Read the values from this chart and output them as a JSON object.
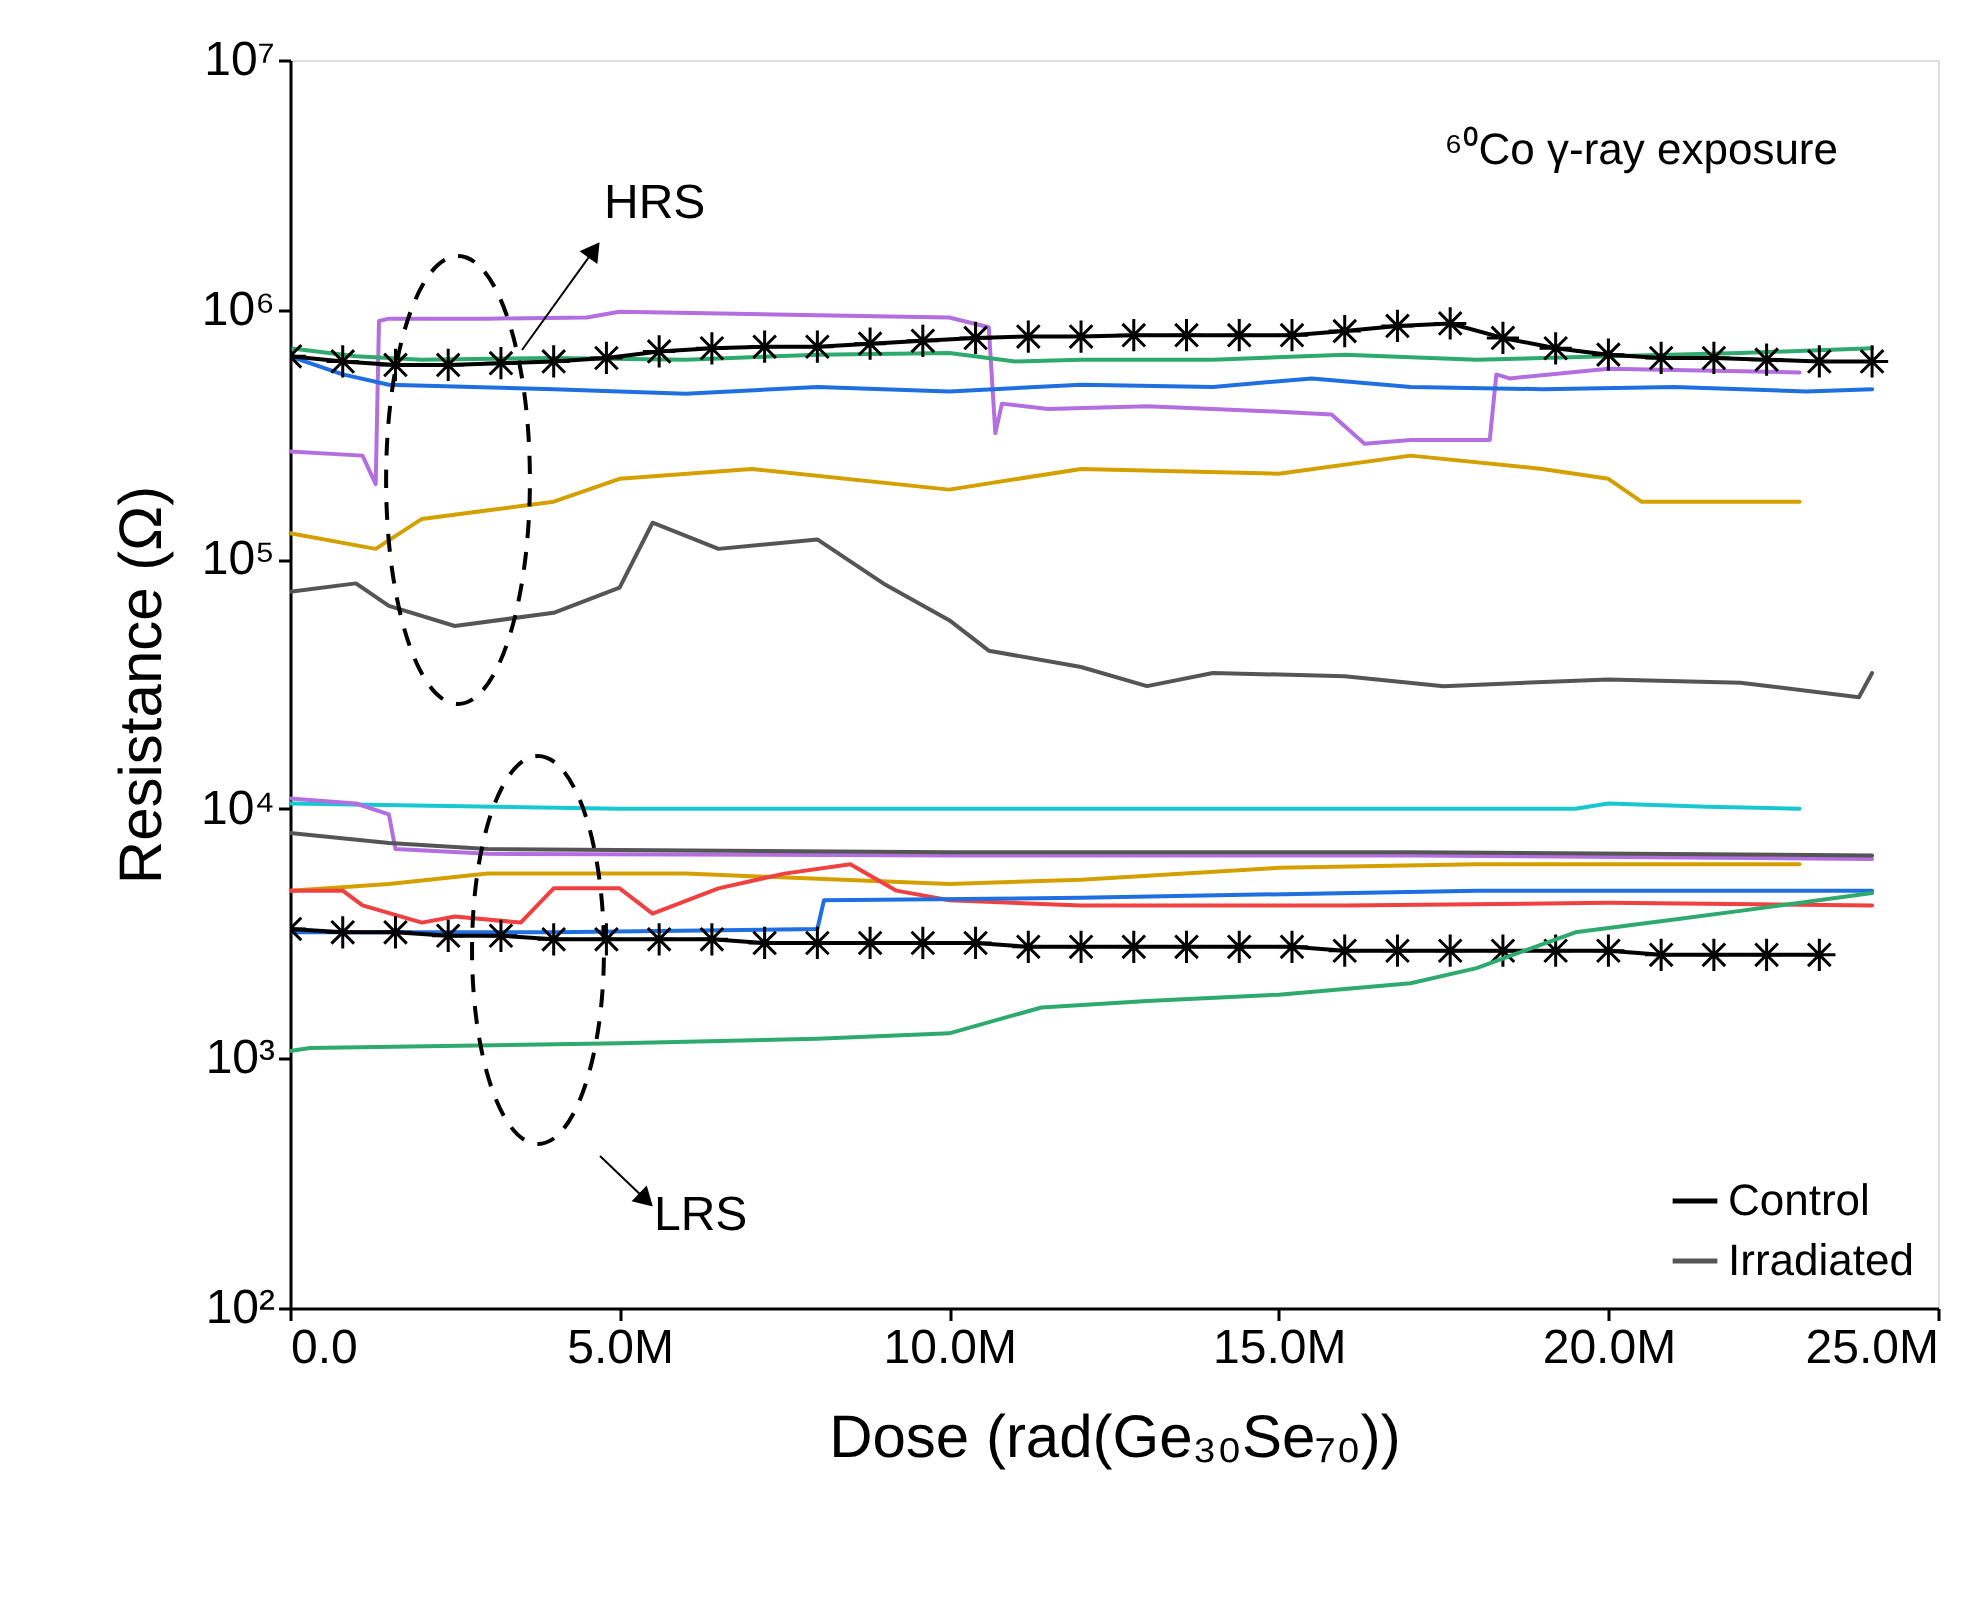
{
  "chart_data": {
    "type": "line",
    "xlabel": "Dose (rad(Ge₃₀Se₇₀))",
    "ylabel": "Resistance (Ω)",
    "annotations": [
      "⁶⁰Co γ-ray exposure",
      "HRS",
      "LRS"
    ],
    "log": "y",
    "grid": false,
    "legend": "bottom right",
    "line_style": "solid",
    "xlim": [
      0,
      25000000
    ],
    "ylim": [
      100,
      10000000
    ],
    "xticks": [
      {
        "value": 0,
        "label": "0.0"
      },
      {
        "value": 5000000,
        "label": "5.0M"
      },
      {
        "value": 10000000,
        "label": "10.0M"
      },
      {
        "value": 15000000,
        "label": "15.0M"
      },
      {
        "value": 20000000,
        "label": "20.0M"
      },
      {
        "value": 25000000,
        "label": "25.0M"
      }
    ],
    "yticks": [
      {
        "value": 100,
        "label": "10²"
      },
      {
        "value": 1000,
        "label": "10³"
      },
      {
        "value": 10000,
        "label": "10⁴"
      },
      {
        "value": 100000,
        "label": "10⁵"
      },
      {
        "value": 1000000,
        "label": "10⁶"
      },
      {
        "value": 10000000,
        "label": "10⁷"
      }
    ],
    "series": [
      {
        "color": "#b36ee0",
        "x": [
          0,
          1100000,
          1300000,
          1350000,
          1500000,
          3000000,
          4500000,
          5000000,
          8000000,
          10000000,
          10600000,
          10700000,
          10800000,
          11500000,
          13000000,
          15000000,
          15800000,
          16300000,
          17000000,
          18200000,
          18300000,
          18500000,
          20000000,
          22900000
        ],
        "values": [
          270000,
          260000,
          200000,
          900000,
          920000,
          920000,
          930000,
          980000,
          950000,
          930000,
          850000,
          320000,
          420000,
          400000,
          410000,
          390000,
          380000,
          290000,
          300000,
          300000,
          550000,
          530000,
          580000,
          560000
        ]
      },
      {
        "color": "#2eaa6e",
        "x": [
          0,
          1000000,
          2000000,
          4000000,
          6000000,
          8000000,
          10000000,
          11000000,
          12000000,
          14000000,
          16000000,
          18000000,
          20000000,
          22000000,
          24000000
        ],
        "values": [
          700000,
          650000,
          630000,
          640000,
          630000,
          660000,
          670000,
          620000,
          630000,
          630000,
          660000,
          630000,
          650000,
          670000,
          700000
        ]
      },
      {
        "color": "#1f6fe0",
        "x": [
          0,
          800000,
          1500000,
          4000000,
          6000000,
          8000000,
          10000000,
          12000000,
          14000000,
          15500000,
          17000000,
          19000000,
          21000000,
          23000000,
          24000000
        ],
        "values": [
          650000,
          550000,
          500000,
          480000,
          460000,
          490000,
          470000,
          500000,
          490000,
          530000,
          490000,
          480000,
          490000,
          470000,
          480000
        ]
      },
      {
        "color": "#d4a000",
        "x": [
          0,
          1300000,
          2000000,
          4000000,
          5000000,
          7000000,
          10000000,
          12000000,
          15000000,
          17000000,
          19000000,
          20000000,
          20500000,
          22900000
        ],
        "values": [
          127000,
          110000,
          145000,
          170000,
          210000,
          230000,
          190000,
          230000,
          220000,
          260000,
          230000,
          210000,
          170000,
          170000
        ]
      },
      {
        "name": "Irradiated",
        "color": "#555555",
        "x": [
          0,
          1000000,
          1500000,
          2500000,
          4000000,
          5000000,
          5500000,
          6500000,
          8000000,
          9000000,
          10000000,
          10600000,
          12000000,
          13000000,
          14000000,
          16000000,
          17500000,
          20000000,
          22000000,
          23800000,
          24000000
        ],
        "values": [
          74000,
          80000,
          65000,
          54000,
          61000,
          77000,
          140000,
          110000,
          120000,
          80000,
          57000,
          43000,
          37000,
          31000,
          35000,
          34000,
          31000,
          33000,
          32000,
          28000,
          35000
        ]
      },
      {
        "name": "Control",
        "color": "#000000",
        "marker": "cross",
        "x": [
          0,
          800000,
          1600000,
          2400000,
          3200000,
          4000000,
          4800000,
          5600000,
          6400000,
          7200000,
          8000000,
          8800000,
          9600000,
          10400000,
          11200000,
          12000000,
          12800000,
          13600000,
          14400000,
          15200000,
          16000000,
          16800000,
          17600000,
          18400000,
          19200000,
          20000000,
          20800000,
          21600000,
          22400000,
          23200000,
          24000000
        ],
        "values": [
          650000,
          620000,
          600000,
          600000,
          610000,
          620000,
          640000,
          680000,
          700000,
          710000,
          710000,
          730000,
          750000,
          770000,
          780000,
          780000,
          790000,
          790000,
          790000,
          790000,
          820000,
          860000,
          880000,
          770000,
          700000,
          660000,
          640000,
          640000,
          630000,
          620000,
          620000
        ]
      },
      {
        "color": "#17c8d0",
        "x": [
          0,
          5000000,
          10000000,
          15000000,
          19500000,
          20000000,
          21500000,
          22900000
        ],
        "values": [
          10500,
          10000,
          10000,
          10000,
          10000,
          10500,
          10200,
          10000
        ]
      },
      {
        "color": "#b36ee0",
        "x": [
          0,
          1000000,
          1500000,
          1600000,
          3000000,
          10000000,
          17000000,
          24000000
        ],
        "values": [
          11000,
          10500,
          9500,
          6900,
          6600,
          6500,
          6500,
          6300
        ]
      },
      {
        "color": "#555555",
        "x": [
          0,
          1500000,
          3000000,
          10000000,
          17000000,
          24000000
        ],
        "values": [
          8000,
          7300,
          6900,
          6700,
          6700,
          6500
        ]
      },
      {
        "color": "#d4a000",
        "x": [
          0,
          1500000,
          3000000,
          6000000,
          10000000,
          12000000,
          15000000,
          18000000,
          22900000
        ],
        "values": [
          4700,
          5000,
          5500,
          5500,
          5000,
          5200,
          5800,
          6000,
          6000
        ]
      },
      {
        "color": "#f04040",
        "x": [
          0,
          800000,
          1100000,
          2000000,
          2500000,
          3500000,
          4000000,
          5000000,
          5500000,
          6500000,
          7500000,
          8500000,
          9200000,
          10000000,
          12000000,
          16000000,
          20000000,
          24000000
        ],
        "values": [
          4700,
          4700,
          4100,
          3500,
          3700,
          3500,
          4800,
          4800,
          3800,
          4800,
          5500,
          6000,
          4700,
          4300,
          4100,
          4100,
          4200,
          4100
        ]
      },
      {
        "color": "#1f6fe0",
        "x": [
          0,
          4000000,
          8000000,
          8100000,
          12000000,
          18000000,
          24000000
        ],
        "values": [
          3200,
          3200,
          3300,
          4300,
          4400,
          4700,
          4700
        ]
      },
      {
        "color": "#000000",
        "marker": "cross",
        "x": [
          0,
          800000,
          1600000,
          2400000,
          3200000,
          4000000,
          4800000,
          5600000,
          6400000,
          7200000,
          8000000,
          8800000,
          9600000,
          10400000,
          11200000,
          12000000,
          12800000,
          13600000,
          14400000,
          15200000,
          16000000,
          16800000,
          17600000,
          18400000,
          19200000,
          20000000,
          20800000,
          21600000,
          22400000,
          23200000
        ],
        "values": [
          3300,
          3200,
          3200,
          3100,
          3100,
          3000,
          3000,
          3000,
          3000,
          2900,
          2900,
          2900,
          2900,
          2900,
          2800,
          2800,
          2800,
          2800,
          2800,
          2800,
          2700,
          2700,
          2700,
          2700,
          2700,
          2700,
          2600,
          2600,
          2600,
          2600
        ]
      },
      {
        "color": "#2eaa6e",
        "x": [
          0,
          300000,
          5000000,
          8000000,
          10000000,
          11400000,
          13000000,
          15000000,
          17000000,
          18000000,
          19500000,
          21000000,
          22000000,
          24000000
        ],
        "values": [
          1070,
          1100,
          1150,
          1200,
          1260,
          1600,
          1700,
          1800,
          2000,
          2300,
          3200,
          3600,
          3900,
          4600
        ]
      }
    ]
  }
}
